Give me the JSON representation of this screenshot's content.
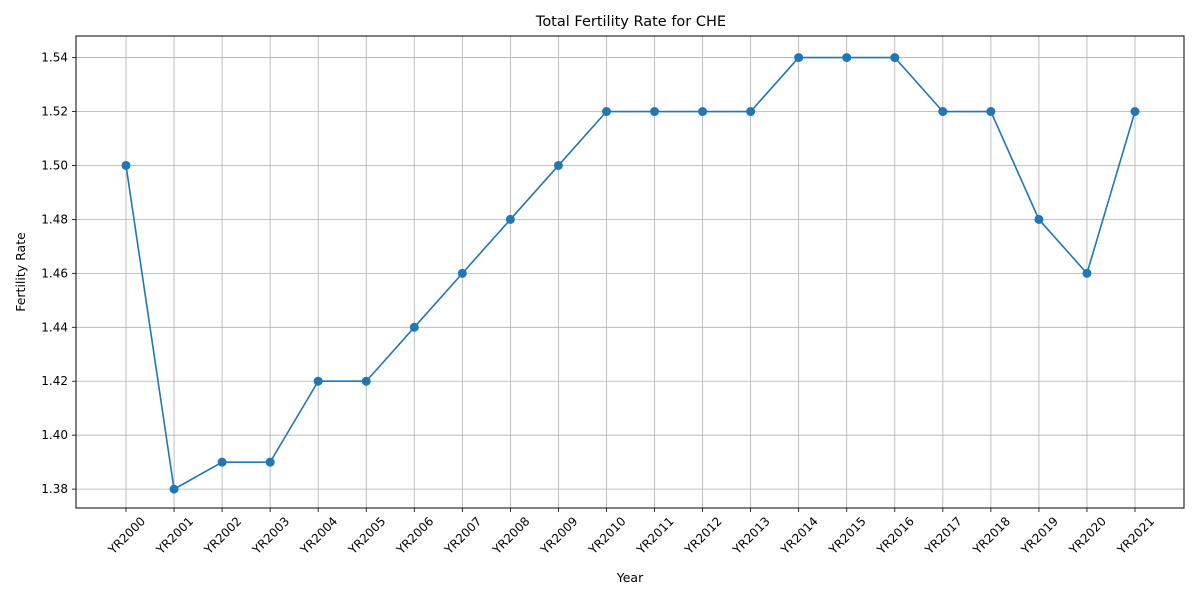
{
  "chart_data": {
    "type": "line",
    "title": "Total Fertility Rate for CHE",
    "xlabel": "Year",
    "ylabel": "Fertility Rate",
    "categories": [
      "YR2000",
      "YR2001",
      "YR2002",
      "YR2003",
      "YR2004",
      "YR2005",
      "YR2006",
      "YR2007",
      "YR2008",
      "YR2009",
      "YR2010",
      "YR2011",
      "YR2012",
      "YR2013",
      "YR2014",
      "YR2015",
      "YR2016",
      "YR2017",
      "YR2018",
      "YR2019",
      "YR2020",
      "YR2021"
    ],
    "series": [
      {
        "values": [
          1.5,
          1.38,
          1.39,
          1.39,
          1.42,
          1.42,
          1.44,
          1.46,
          1.48,
          1.5,
          1.52,
          1.52,
          1.52,
          1.52,
          1.54,
          1.54,
          1.54,
          1.52,
          1.52,
          1.48,
          1.46,
          1.52
        ],
        "color": "#1f77b4",
        "marker": "circle"
      }
    ],
    "ylim": [
      1.373,
      1.548
    ],
    "yticks": [
      "1.38",
      "1.40",
      "1.42",
      "1.44",
      "1.46",
      "1.48",
      "1.50",
      "1.52",
      "1.54"
    ],
    "grid": true,
    "legend": "none"
  },
  "colors": {
    "line": "#1f77b4",
    "grid": "#b0b0b0",
    "axes": "#000000"
  }
}
